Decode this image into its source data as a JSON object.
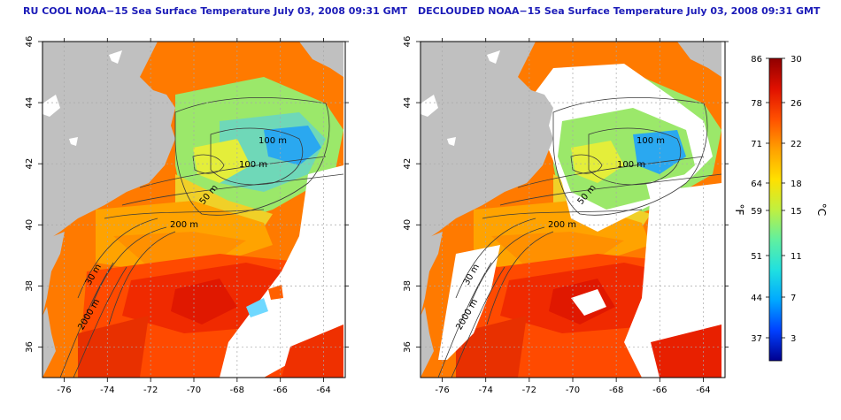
{
  "panels": [
    {
      "title": "RU COOL NOAA−15 Sea Surface Temperature July 03, 2008 09:31 GMT",
      "x_ticks": [
        "-76",
        "-74",
        "-72",
        "-70",
        "-68",
        "-66",
        "-64"
      ],
      "y_ticks": [
        "36",
        "38",
        "40",
        "42",
        "44",
        "46"
      ],
      "contours": [
        "100 m",
        "100 m",
        "50 m",
        "200 m",
        "30 m",
        "2000 m"
      ]
    },
    {
      "title": "DECLOUDED NOAA−15 Sea Surface Temperature July 03, 2008 09:31 GMT",
      "x_ticks": [
        "-76",
        "-74",
        "-72",
        "-70",
        "-68",
        "-66",
        "-64"
      ],
      "y_ticks": [
        "36",
        "38",
        "40",
        "42",
        "44",
        "46"
      ],
      "contours": [
        "100 m",
        "100 m",
        "50 m",
        "200 m",
        "30 m",
        "2000 m"
      ]
    }
  ],
  "colorbar": {
    "f_label": "°F",
    "c_label": "°C",
    "f_ticks": [
      "86",
      "78",
      "71",
      "64",
      "59",
      "51",
      "44",
      "37"
    ],
    "c_ticks": [
      "30",
      "26",
      "22",
      "18",
      "15",
      "11",
      "7",
      "3"
    ],
    "colors": [
      "#00008f",
      "#0040ff",
      "#00a8ff",
      "#20e0e0",
      "#60f0a0",
      "#c0f040",
      "#ffe000",
      "#ffa000",
      "#ff5000",
      "#e01000",
      "#900000"
    ]
  },
  "map": {
    "land": "#c0c0c0",
    "cloud": "#ffffff",
    "grid": "#a8a8a8"
  }
}
